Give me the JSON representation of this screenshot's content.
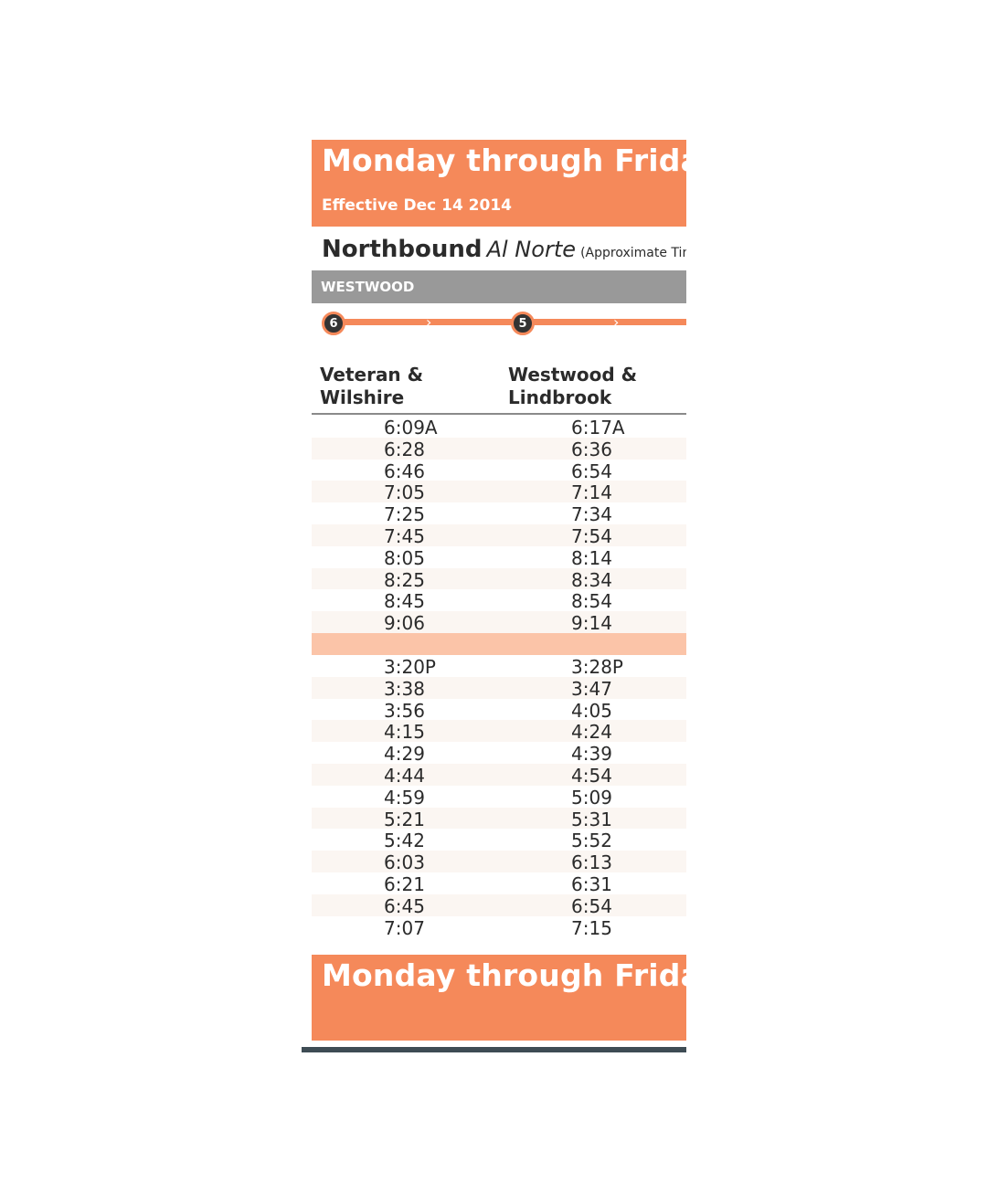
{
  "header": {
    "title": "Monday through Friday",
    "effective": "Effective Dec 14 2014"
  },
  "direction": {
    "english": "Northbound",
    "spanish": "Al Norte",
    "note": "(Approximate Times"
  },
  "area": {
    "label": "WESTWOOD"
  },
  "stops": [
    {
      "number": "6",
      "name_line1": "Veteran &",
      "name_line2": "Wilshire"
    },
    {
      "number": "5",
      "name_line1": "Westwood &",
      "name_line2": "Lindbrook"
    }
  ],
  "morning": [
    [
      "6:09A",
      "6:17A"
    ],
    [
      "6:28",
      "6:36"
    ],
    [
      "6:46",
      "6:54"
    ],
    [
      "7:05",
      "7:14"
    ],
    [
      "7:25",
      "7:34"
    ],
    [
      "7:45",
      "7:54"
    ],
    [
      "8:05",
      "8:14"
    ],
    [
      "8:25",
      "8:34"
    ],
    [
      "8:45",
      "8:54"
    ],
    [
      "9:06",
      "9:14"
    ]
  ],
  "afternoon": [
    [
      "3:20P",
      "3:28P"
    ],
    [
      "3:38",
      "3:47"
    ],
    [
      "3:56",
      "4:05"
    ],
    [
      "4:15",
      "4:24"
    ],
    [
      "4:29",
      "4:39"
    ],
    [
      "4:44",
      "4:54"
    ],
    [
      "4:59",
      "5:09"
    ],
    [
      "5:21",
      "5:31"
    ],
    [
      "5:42",
      "5:52"
    ],
    [
      "6:03",
      "6:13"
    ],
    [
      "6:21",
      "6:31"
    ],
    [
      "6:45",
      "6:54"
    ],
    [
      "7:07",
      "7:15"
    ]
  ],
  "footer": {
    "title": "Monday through Friday"
  },
  "colors": {
    "accent": "#f5895a",
    "band": "#999999",
    "gap": "#fbc4a8",
    "text": "#2b2b2b"
  }
}
